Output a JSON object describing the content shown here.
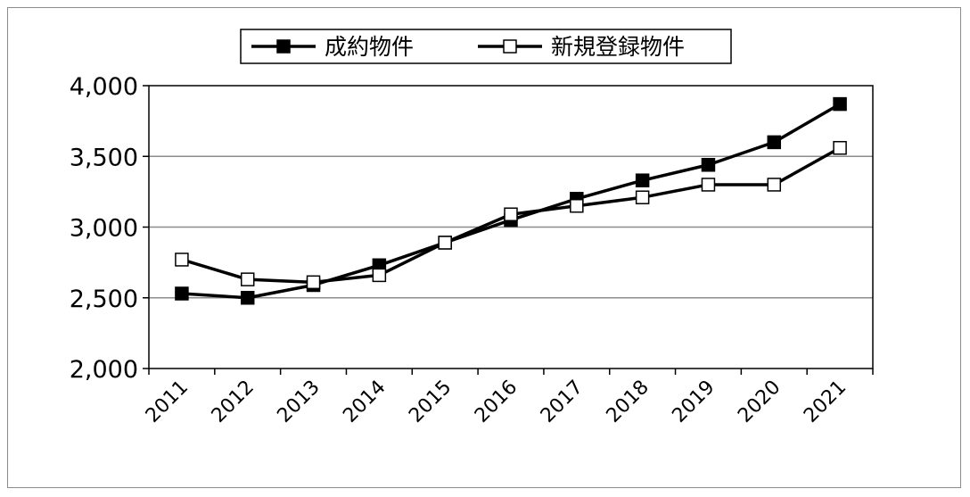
{
  "chart_data": {
    "type": "line",
    "title": "",
    "xlabel": "",
    "ylabel": "",
    "x": [
      "2011",
      "2012",
      "2013",
      "2014",
      "2015",
      "2016",
      "2017",
      "2018",
      "2019",
      "2020",
      "2021"
    ],
    "ylim": [
      2000,
      4000
    ],
    "yticks": [
      2000,
      2500,
      3000,
      3500,
      4000
    ],
    "ytick_labels": [
      "2,000",
      "2,500",
      "3,000",
      "3,500",
      "4,000"
    ],
    "grid": true,
    "legend_position": "top-center",
    "series": [
      {
        "name": "成約物件",
        "marker": "filled-square",
        "color": "#000000",
        "values": [
          2530,
          2500,
          2590,
          2730,
          2890,
          3050,
          3200,
          3330,
          3440,
          3600,
          3870
        ]
      },
      {
        "name": "新規登録物件",
        "marker": "open-square",
        "color": "#000000",
        "values": [
          2770,
          2630,
          2610,
          2660,
          2890,
          3090,
          3150,
          3210,
          3300,
          3300,
          3560
        ]
      }
    ]
  }
}
